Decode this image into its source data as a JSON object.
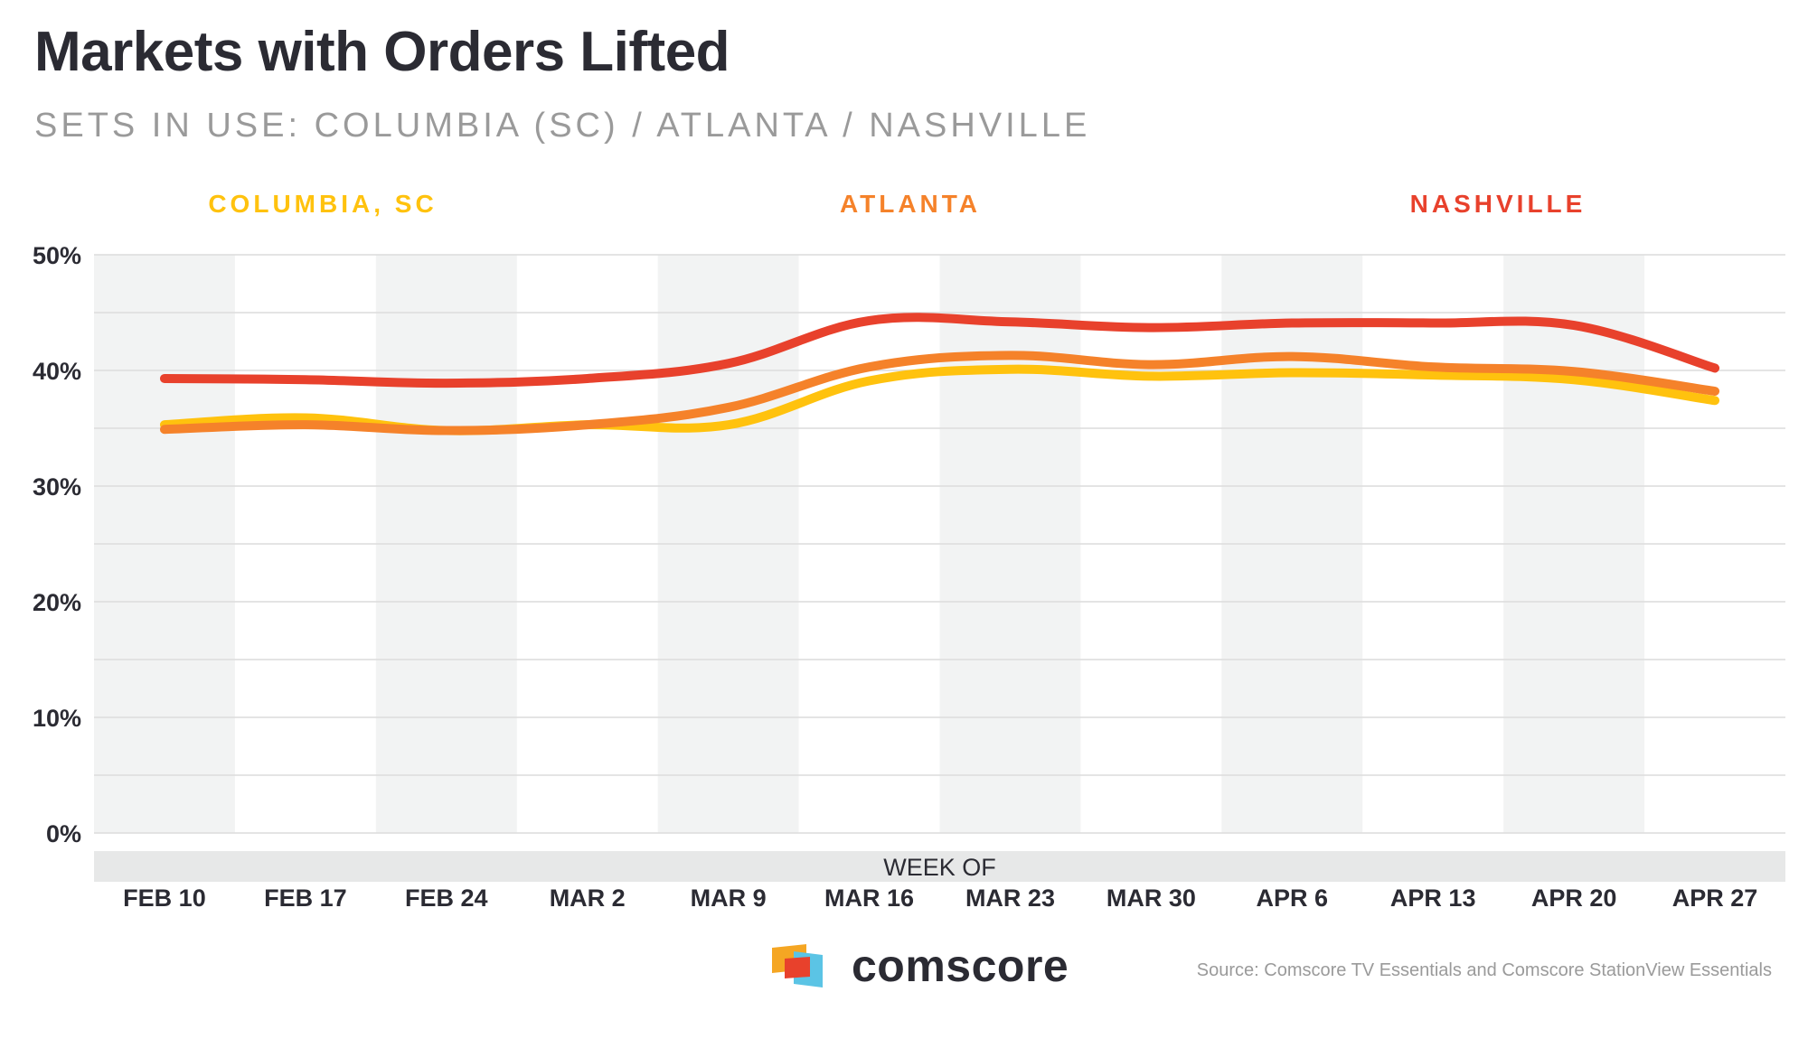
{
  "header": {
    "title": "Markets with Orders Lifted",
    "subtitle": "SETS IN USE: COLUMBIA (SC) / ATLANTA / NASHVILLE"
  },
  "colors": {
    "columbia": "#ffc20e",
    "atlanta": "#f5822a",
    "nashville": "#e8412c",
    "band": "#f2f3f3",
    "grid": "#dcdcdc",
    "axis_text": "#2b2b33"
  },
  "chart_data": {
    "type": "line",
    "xlabel": "WEEK OF",
    "ylabel": "",
    "ylim": [
      0,
      50
    ],
    "y_ticks": [
      "0%",
      "10%",
      "20%",
      "30%",
      "40%",
      "50%"
    ],
    "grid": true,
    "legend_position": "top",
    "categories": [
      "FEB 10",
      "FEB 17",
      "FEB 24",
      "MAR 2",
      "MAR 9",
      "MAR 16",
      "MAR 23",
      "MAR 30",
      "APR 6",
      "APR 13",
      "APR 20",
      "APR 27"
    ],
    "series": [
      {
        "name": "COLUMBIA, SC",
        "color": "#ffc20e",
        "values": [
          35.3,
          35.9,
          34.8,
          35.3,
          35.3,
          39.1,
          40.1,
          39.5,
          39.8,
          39.6,
          39.2,
          37.4
        ]
      },
      {
        "name": "ATLANTA",
        "color": "#f5822a",
        "values": [
          34.9,
          35.3,
          34.8,
          35.3,
          36.8,
          40.3,
          41.3,
          40.5,
          41.2,
          40.3,
          39.9,
          38.2
        ]
      },
      {
        "name": "NASHVILLE",
        "color": "#e8412c",
        "values": [
          39.3,
          39.2,
          38.9,
          39.3,
          40.6,
          44.3,
          44.2,
          43.7,
          44.1,
          44.1,
          43.9,
          40.2
        ]
      }
    ]
  },
  "footer": {
    "logo_text": "comscore",
    "source": "Source: Comscore TV Essentials and Comscore StationView Essentials"
  }
}
